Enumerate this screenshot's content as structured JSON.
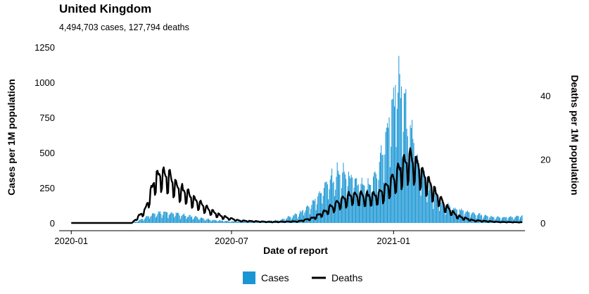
{
  "title": "United Kingdom",
  "subtitle": "4,494,703 cases, 127,794 deaths",
  "colors": {
    "cases": "#1a96d4",
    "deaths": "#000000"
  },
  "chart_data": {
    "type": "bar",
    "xlabel": "Date of report",
    "ylabel_left": "Cases per 1M population",
    "ylabel_right": "Deaths per 1M population",
    "x_ticks": [
      {
        "label": "2020-01",
        "date": "2020-01-01"
      },
      {
        "label": "2020-07",
        "date": "2020-07-01"
      },
      {
        "label": "2021-01",
        "date": "2021-01-01"
      }
    ],
    "x_range": [
      "2019-12-31",
      "2021-05-27"
    ],
    "left_axis": {
      "ticks": [
        0,
        250,
        500,
        750,
        1000,
        1250
      ],
      "ylim": [
        0,
        1300
      ]
    },
    "right_axis": {
      "ticks": [
        0,
        20,
        40
      ],
      "ylim": [
        0,
        57
      ]
    },
    "legend": {
      "placement": "bottom",
      "items": [
        "Cases",
        "Deaths"
      ]
    },
    "series": [
      {
        "name": "Cases",
        "type": "bar",
        "axis": "left",
        "color": "#1a96d4",
        "weekly_pattern": [
          1.0,
          0.55,
          0.8,
          1.05,
          1.2,
          1.15,
          1.05
        ],
        "points": [
          {
            "date": "2020-01-01",
            "value": 0
          },
          {
            "date": "2020-03-01",
            "value": 0
          },
          {
            "date": "2020-03-15",
            "value": 10
          },
          {
            "date": "2020-03-28",
            "value": 45
          },
          {
            "date": "2020-04-10",
            "value": 70
          },
          {
            "date": "2020-04-25",
            "value": 65
          },
          {
            "date": "2020-05-15",
            "value": 45
          },
          {
            "date": "2020-06-05",
            "value": 22
          },
          {
            "date": "2020-07-01",
            "value": 10
          },
          {
            "date": "2020-08-01",
            "value": 12
          },
          {
            "date": "2020-08-25",
            "value": 18
          },
          {
            "date": "2020-09-15",
            "value": 60
          },
          {
            "date": "2020-10-01",
            "value": 130
          },
          {
            "date": "2020-10-15",
            "value": 250
          },
          {
            "date": "2020-10-28",
            "value": 320
          },
          {
            "date": "2020-11-10",
            "value": 310
          },
          {
            "date": "2020-11-25",
            "value": 240
          },
          {
            "date": "2020-12-05",
            "value": 230
          },
          {
            "date": "2020-12-15",
            "value": 360
          },
          {
            "date": "2020-12-25",
            "value": 620
          },
          {
            "date": "2021-01-04",
            "value": 900
          },
          {
            "date": "2021-01-10",
            "value": 860
          },
          {
            "date": "2021-01-20",
            "value": 600
          },
          {
            "date": "2021-02-01",
            "value": 340
          },
          {
            "date": "2021-02-15",
            "value": 190
          },
          {
            "date": "2021-03-01",
            "value": 110
          },
          {
            "date": "2021-03-15",
            "value": 85
          },
          {
            "date": "2021-04-01",
            "value": 65
          },
          {
            "date": "2021-04-15",
            "value": 45
          },
          {
            "date": "2021-05-01",
            "value": 35
          },
          {
            "date": "2021-05-15",
            "value": 38
          },
          {
            "date": "2021-05-27",
            "value": 45
          }
        ]
      },
      {
        "name": "Deaths",
        "type": "line",
        "axis": "right",
        "color": "#000000",
        "weekly_pattern": [
          0.65,
          0.7,
          1.15,
          1.2,
          1.1,
          1.05,
          1.0
        ],
        "points": [
          {
            "date": "2020-01-01",
            "value": 0
          },
          {
            "date": "2020-03-10",
            "value": 0
          },
          {
            "date": "2020-03-25",
            "value": 4
          },
          {
            "date": "2020-04-05",
            "value": 13
          },
          {
            "date": "2020-04-12",
            "value": 15
          },
          {
            "date": "2020-04-20",
            "value": 14
          },
          {
            "date": "2020-05-05",
            "value": 10
          },
          {
            "date": "2020-05-20",
            "value": 7
          },
          {
            "date": "2020-06-05",
            "value": 4
          },
          {
            "date": "2020-06-20",
            "value": 2
          },
          {
            "date": "2020-07-10",
            "value": 0.7
          },
          {
            "date": "2020-08-15",
            "value": 0.3
          },
          {
            "date": "2020-09-15",
            "value": 0.5
          },
          {
            "date": "2020-10-01",
            "value": 1.5
          },
          {
            "date": "2020-10-15",
            "value": 3.5
          },
          {
            "date": "2020-11-01",
            "value": 6.5
          },
          {
            "date": "2020-11-15",
            "value": 8.5
          },
          {
            "date": "2020-12-01",
            "value": 8
          },
          {
            "date": "2020-12-15",
            "value": 8.5
          },
          {
            "date": "2020-12-28",
            "value": 12
          },
          {
            "date": "2021-01-10",
            "value": 17
          },
          {
            "date": "2021-01-20",
            "value": 20
          },
          {
            "date": "2021-02-01",
            "value": 16
          },
          {
            "date": "2021-02-15",
            "value": 10
          },
          {
            "date": "2021-03-01",
            "value": 5
          },
          {
            "date": "2021-03-15",
            "value": 2
          },
          {
            "date": "2021-04-01",
            "value": 0.8
          },
          {
            "date": "2021-05-01",
            "value": 0.3
          },
          {
            "date": "2021-05-27",
            "value": 0.2
          }
        ]
      }
    ]
  }
}
